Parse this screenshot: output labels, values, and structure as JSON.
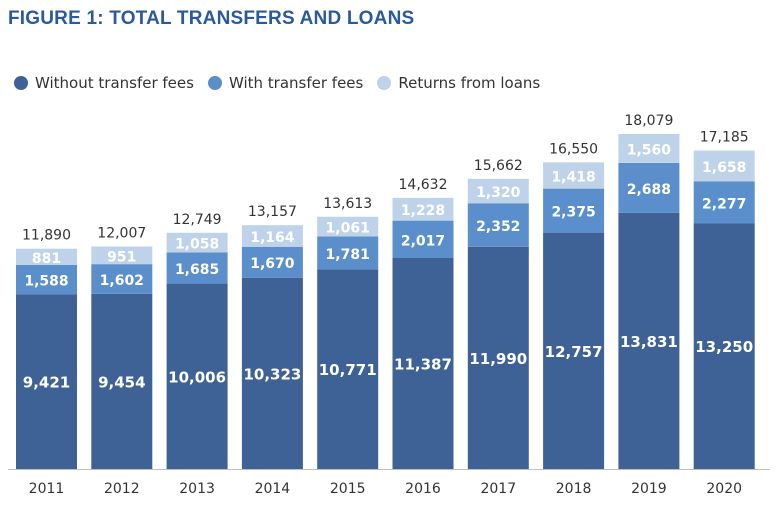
{
  "title": "FIGURE 1: TOTAL TRANSFERS AND LOANS",
  "colors": {
    "without": "#3e6296",
    "with": "#5b8fcb",
    "returns": "#bed3ea",
    "title": "#2a5a9c"
  },
  "chart_data": {
    "type": "bar",
    "stacked": true,
    "categories": [
      "2011",
      "2012",
      "2013",
      "2014",
      "2015",
      "2016",
      "2017",
      "2018",
      "2019",
      "2020"
    ],
    "series": [
      {
        "name": "Without transfer fees",
        "values": [
          9421,
          9454,
          10006,
          10323,
          10771,
          11387,
          11990,
          12757,
          13831,
          13250
        ],
        "labels": [
          "9,421",
          "9,454",
          "10,006",
          "10,323",
          "10,771",
          "11,387",
          "11,990",
          "12,757",
          "13,831",
          "13,250"
        ]
      },
      {
        "name": "With transfer fees",
        "values": [
          1588,
          1602,
          1685,
          1670,
          1781,
          2017,
          2352,
          2375,
          2688,
          2277
        ],
        "labels": [
          "1,588",
          "1,602",
          "1,685",
          "1,670",
          "1,781",
          "2,017",
          "2,352",
          "2,375",
          "2,688",
          "2,277"
        ]
      },
      {
        "name": "Returns from loans",
        "values": [
          881,
          951,
          1058,
          1164,
          1061,
          1228,
          1320,
          1418,
          1560,
          1658
        ],
        "labels": [
          "881",
          "951",
          "1,058",
          "1,164",
          "1,061",
          "1,228",
          "1,320",
          "1,418",
          "1,560",
          "1,658"
        ]
      }
    ],
    "totals": [
      11890,
      12007,
      12749,
      13157,
      13613,
      14632,
      15662,
      16550,
      18079,
      17185
    ],
    "total_labels": [
      "11,890",
      "12,007",
      "12,749",
      "13,157",
      "13,613",
      "14,632",
      "15,662",
      "16,550",
      "18,079",
      "17,185"
    ],
    "ylim": [
      0,
      18079
    ],
    "legend_position": "top-left",
    "grid": false,
    "xlabel": "",
    "ylabel": ""
  }
}
